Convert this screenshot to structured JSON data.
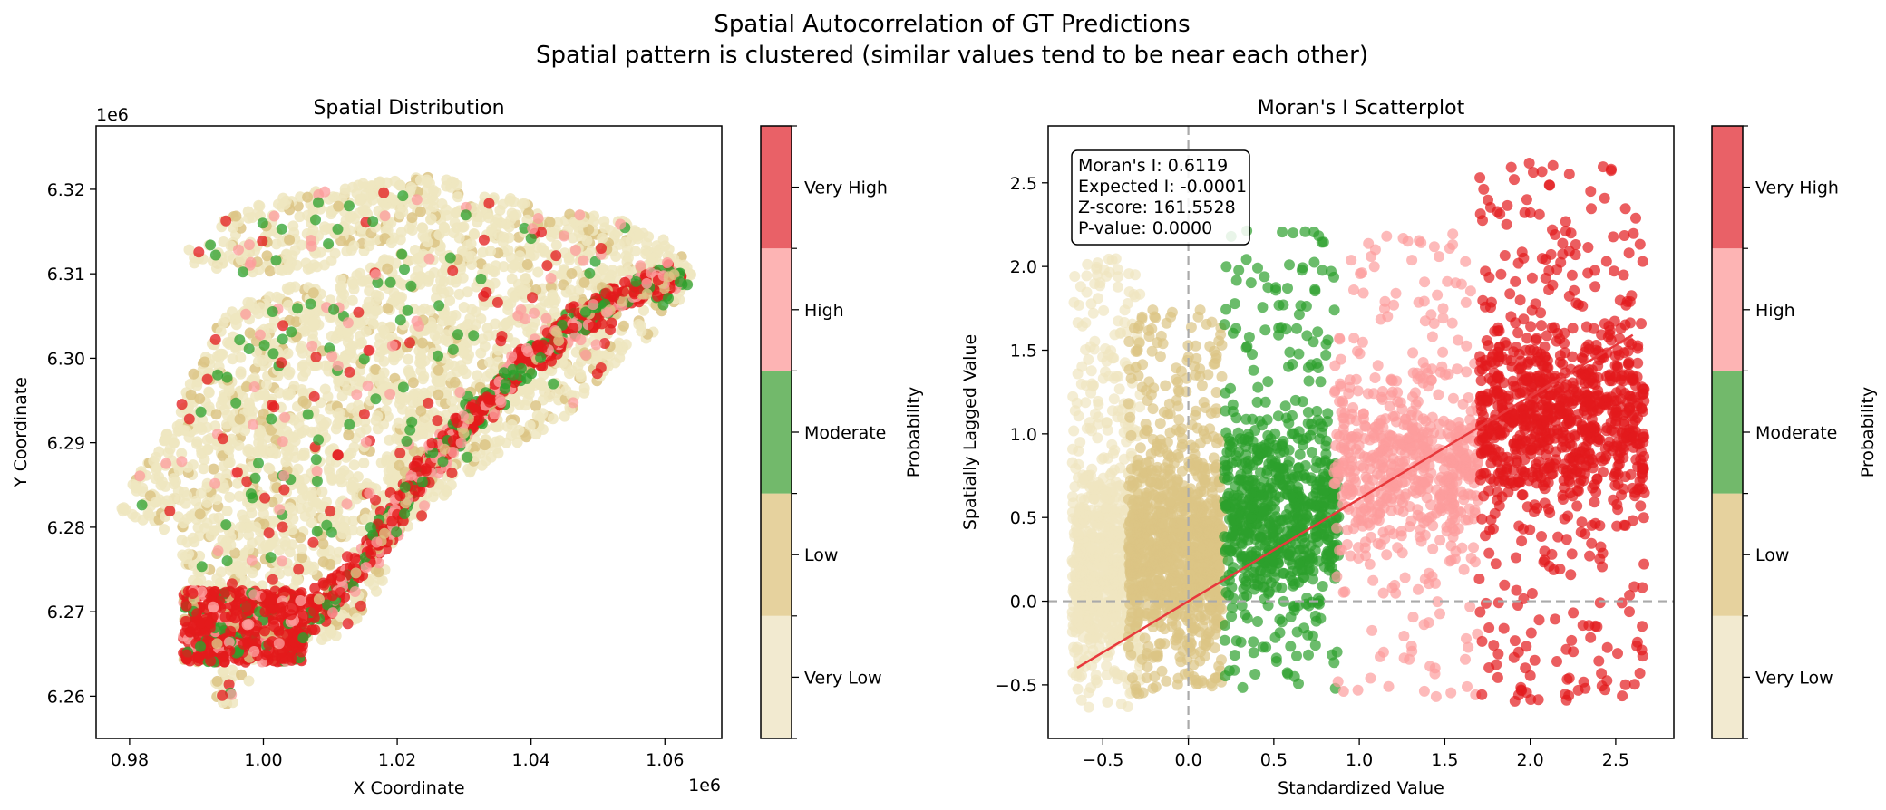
{
  "figure": {
    "title_line1": "Spatial Autocorrelation of GT Predictions",
    "title_line2": "Spatial pattern is clustered (similar values tend to be near each other)"
  },
  "colors": {
    "very_low": "#efe6c0",
    "low": "#dcc485",
    "moderate": "#2ca02c",
    "high": "#fc9c9c",
    "very_high": "#e31a1c",
    "cbar": [
      "#f2ead0",
      "#e6d29e",
      "#72b96b",
      "#fdb4b4",
      "#e96167"
    ],
    "regression_line": "#e8393c",
    "ref_line": "#aaaaaa"
  },
  "chart_data": [
    {
      "type": "scatter",
      "title": "Spatial Distribution",
      "xlabel": "X Coordinate",
      "ylabel": "Y Coordinate",
      "xlim": [
        975000,
        1068500
      ],
      "ylim": [
        6255000,
        6327500
      ],
      "x_offset_label": "1e6",
      "y_offset_label": "1e6",
      "x_ticks": [
        0.98,
        1.0,
        1.02,
        1.04,
        1.06
      ],
      "x_tick_labels": [
        "0.98",
        "1.00",
        "1.02",
        "1.04",
        "1.06"
      ],
      "y_ticks": [
        6.26,
        6.27,
        6.28,
        6.29,
        6.3,
        6.31,
        6.32
      ],
      "y_tick_labels": [
        "6.26",
        "6.27",
        "6.28",
        "6.29",
        "6.30",
        "6.31",
        "6.32"
      ],
      "region_outline_x": [
        978000,
        981000,
        986000,
        989000,
        991000,
        993000,
        996000,
        1000000,
        1004000,
        1010000,
        1014000,
        1017000,
        1020000,
        1026000,
        1033000,
        1038000,
        1043000,
        1048000,
        1054000,
        1060000,
        1064000,
        1064000,
        1060000,
        1055000,
        1051000,
        1047000,
        1041000,
        1034000,
        1029000,
        1025000,
        1020000,
        1014000,
        1007000,
        1000000,
        995000,
        992000,
        994000,
        999000,
        1006000,
        1013000,
        1019000,
        1012000,
        1004000,
        996000,
        992000,
        990000,
        988000,
        987000,
        988000,
        985000,
        980000
      ],
      "region_outline_y": [
        6282000,
        6286000,
        6292000,
        6297000,
        6301000,
        6304000,
        6306000,
        6307500,
        6308500,
        6309000,
        6310000,
        6311500,
        6314000,
        6317000,
        6319500,
        6319000,
        6316500,
        6317500,
        6316500,
        6314500,
        6311000,
        6307000,
        6304000,
        6301000,
        6298000,
        6294000,
        6291000,
        6288000,
        6285000,
        6282000,
        6278500,
        6275000,
        6268000,
        6263000,
        6258500,
        6260500,
        6264000,
        6266500,
        6266000,
        6267500,
        6275000,
        6276000,
        6272000,
        6270000,
        6272000,
        6273000,
        6275500,
        6277500,
        6279500,
        6279500,
        6281000
      ],
      "upper_lobe_x": [
        987000,
        993000,
        1002000,
        1012000,
        1020000,
        1026000,
        1030000,
        1026000,
        1018000,
        1008000,
        998000,
        990000
      ],
      "upper_lobe_y": [
        6312500,
        6316000,
        6319000,
        6320500,
        6321500,
        6322500,
        6320000,
        6316000,
        6312500,
        6310500,
        6310000,
        6311000
      ],
      "hotspot_path_x": [
        992000,
        996000,
        1001000,
        1006000,
        1010000,
        1015000,
        1019000,
        1022000,
        1026000,
        1030000,
        1034000,
        1038000,
        1042000,
        1046000,
        1050000,
        1054000,
        1058000,
        1062000
      ],
      "hotspot_path_y": [
        6269500,
        6268500,
        6267500,
        6269000,
        6272000,
        6276000,
        6280000,
        6285000,
        6289000,
        6292000,
        6295000,
        6299000,
        6301000,
        6304000,
        6306000,
        6307500,
        6309000,
        6309500
      ],
      "hotspot_cluster_x": [
        988000,
        1006000
      ],
      "hotspot_cluster_y": [
        6264000,
        6272500
      ]
    },
    {
      "type": "scatter",
      "title": "Moran's I Scatterplot",
      "xlabel": "Standardized Value",
      "ylabel": "Spatially Lagged Value",
      "xlim": [
        -0.82,
        2.84
      ],
      "ylim": [
        -0.82,
        2.84
      ],
      "x_ticks": [
        -0.5,
        0.0,
        0.5,
        1.0,
        1.5,
        2.0,
        2.5
      ],
      "x_tick_labels": [
        "−0.5",
        "0.0",
        "0.5",
        "1.0",
        "1.5",
        "2.0",
        "2.5"
      ],
      "y_ticks": [
        -0.5,
        0.0,
        0.5,
        1.0,
        1.5,
        2.0,
        2.5
      ],
      "y_tick_labels": [
        "−0.5",
        "0.0",
        "0.5",
        "1.0",
        "1.5",
        "2.0",
        "2.5"
      ],
      "groups": [
        {
          "name": "Very Low",
          "x_range": [
            -0.68,
            -0.28
          ],
          "y_range": [
            -0.65,
            2.05
          ],
          "y_center": 0.2
        },
        {
          "name": "Low",
          "x_range": [
            -0.35,
            0.2
          ],
          "y_range": [
            -0.6,
            1.75
          ],
          "y_center": 0.3
        },
        {
          "name": "Moderate",
          "x_range": [
            0.21,
            0.88
          ],
          "y_range": [
            -0.6,
            2.25
          ],
          "y_center": 0.5
        },
        {
          "name": "High",
          "x_range": [
            0.85,
            1.7
          ],
          "y_range": [
            -0.6,
            2.2
          ],
          "y_center": 0.8
        },
        {
          "name": "Very High",
          "x_range": [
            1.7,
            2.67
          ],
          "y_range": [
            -0.62,
            2.65
          ],
          "y_center": 1.1
        }
      ],
      "regression": {
        "x": [
          -0.65,
          2.6
        ],
        "slope": 0.6119,
        "intercept": 0.0
      },
      "ref_lines": {
        "x": 0,
        "y": 0
      },
      "stats_box": {
        "morans_i": "Moran's I: 0.6119",
        "expected_i": "Expected I: -0.0001",
        "z_score": "Z-score: 161.5528",
        "p_value": "P-value: 0.0000"
      }
    }
  ],
  "colorbar": {
    "label": "Probability",
    "categories": [
      "Very Low",
      "Low",
      "Moderate",
      "High",
      "Very High"
    ]
  }
}
